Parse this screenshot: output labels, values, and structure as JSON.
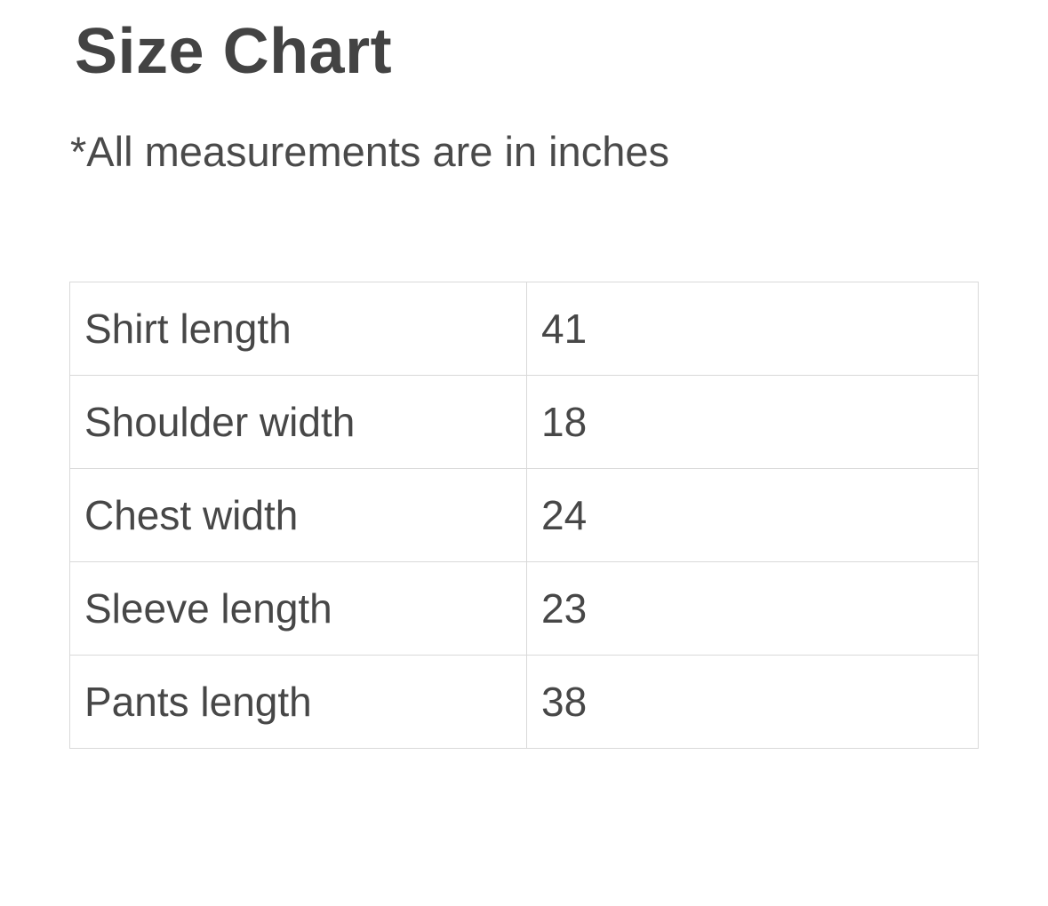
{
  "page": {
    "title": "Size Chart",
    "note": "*All measurements are in inches"
  },
  "size_table": {
    "rows": [
      {
        "label": "Shirt length",
        "value": "41"
      },
      {
        "label": "Shoulder width",
        "value": "18"
      },
      {
        "label": "Chest width",
        "value": "24"
      },
      {
        "label": "Sleeve length",
        "value": "23"
      },
      {
        "label": "Pants length",
        "value": "38"
      }
    ]
  },
  "colors": {
    "text": "#474747",
    "title": "#434343",
    "border": "#d9d9d9",
    "background": "#ffffff"
  }
}
